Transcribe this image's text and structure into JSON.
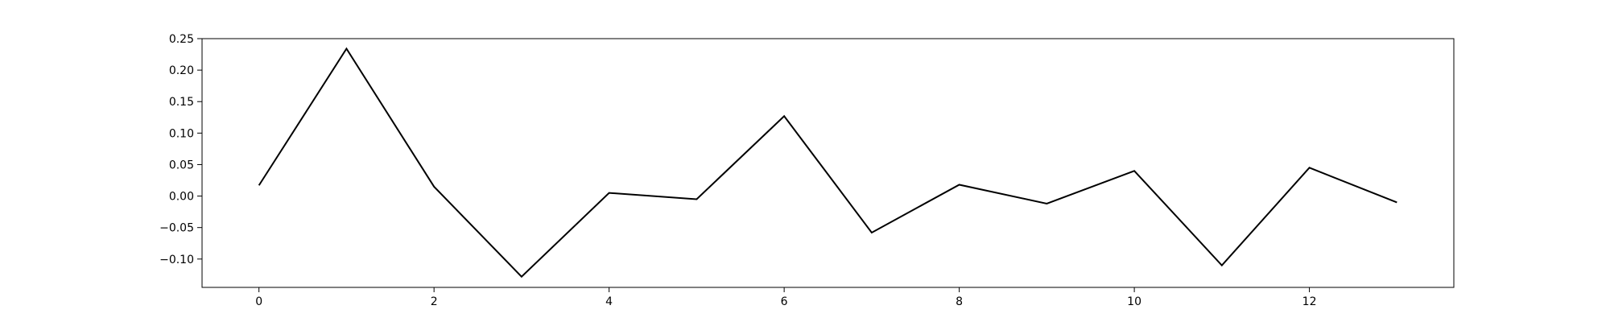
{
  "chart_data": {
    "type": "line",
    "x": [
      0,
      1,
      2,
      3,
      4,
      5,
      6,
      7,
      8,
      9,
      10,
      11,
      12,
      13
    ],
    "series": [
      {
        "values": [
          0.017,
          0.234,
          0.015,
          -0.128,
          0.005,
          -0.005,
          0.127,
          -0.058,
          0.018,
          -0.012,
          0.04,
          -0.11,
          0.045,
          -0.01
        ],
        "color": "#000000"
      }
    ],
    "xlim": [
      -0.65,
      13.65
    ],
    "ylim": [
      -0.145,
      0.25
    ],
    "x_ticks": [
      0,
      2,
      4,
      6,
      8,
      10,
      12
    ],
    "x_tick_labels": [
      "0",
      "2",
      "4",
      "6",
      "8",
      "10",
      "12"
    ],
    "y_ticks": [
      0.25,
      0.2,
      0.15,
      0.1,
      0.05,
      0.0,
      -0.05,
      -0.1
    ],
    "y_tick_labels": [
      "0.25",
      "0.20",
      "0.15",
      "0.10",
      "0.05",
      "0.00",
      "−0.05",
      "−0.10"
    ],
    "grid": false,
    "title": "",
    "xlabel": "",
    "ylabel": ""
  }
}
